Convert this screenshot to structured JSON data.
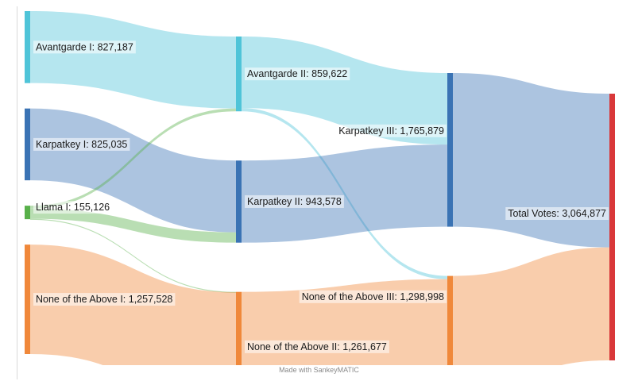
{
  "chart_data": {
    "type": "sankey",
    "title": "",
    "nodes": [
      {
        "id": "avantgarde_1",
        "name": "Avantgarde I",
        "value": 827187,
        "value_label": "827,187",
        "color": "#4fc4d8",
        "stage": 0
      },
      {
        "id": "karpatkey_1",
        "name": "Karpatkey I",
        "value": 825035,
        "value_label": "825,035",
        "color": "#3a73b4",
        "stage": 0
      },
      {
        "id": "llama_1",
        "name": "Llama I",
        "value": 155126,
        "value_label": "155,126",
        "color": "#58b04a",
        "stage": 0
      },
      {
        "id": "nota_1",
        "name": "None of the Above I",
        "value": 1257528,
        "value_label": "1,257,528",
        "color": "#f0883a",
        "stage": 0
      },
      {
        "id": "avantgarde_2",
        "name": "Avantgarde II",
        "value": 859622,
        "value_label": "859,622",
        "color": "#4fc4d8",
        "stage": 1
      },
      {
        "id": "karpatkey_2",
        "name": "Karpatkey II",
        "value": 943578,
        "value_label": "943,578",
        "color": "#3a73b4",
        "stage": 1
      },
      {
        "id": "nota_2",
        "name": "None of the Above II",
        "value": 1261677,
        "value_label": "1,261,677",
        "color": "#f0883a",
        "stage": 1
      },
      {
        "id": "karpatkey_3",
        "name": "Karpatkey III",
        "value": 1765879,
        "value_label": "1,765,879",
        "color": "#3a73b4",
        "stage": 2
      },
      {
        "id": "nota_3",
        "name": "None of the Above III",
        "value": 1298998,
        "value_label": "1,298,998",
        "color": "#f0883a",
        "stage": 2
      },
      {
        "id": "total",
        "name": "Total Votes",
        "value": 3064877,
        "value_label": "3,064,877",
        "color": "#d9383a",
        "stage": 3
      }
    ],
    "links": [
      {
        "source": "avantgarde_1",
        "target": "avantgarde_2",
        "value": 827187
      },
      {
        "source": "karpatkey_1",
        "target": "karpatkey_2",
        "value": 825035
      },
      {
        "source": "llama_1",
        "target": "avantgarde_2",
        "value": 32435
      },
      {
        "source": "llama_1",
        "target": "karpatkey_2",
        "value": 118543
      },
      {
        "source": "llama_1",
        "target": "nota_2",
        "value": 4148
      },
      {
        "source": "nota_1",
        "target": "nota_2",
        "value": 1257528
      },
      {
        "source": "avantgarde_2",
        "target": "karpatkey_3",
        "value": 822301
      },
      {
        "source": "avantgarde_2",
        "target": "nota_3",
        "value": 37321
      },
      {
        "source": "karpatkey_2",
        "target": "karpatkey_3",
        "value": 943578
      },
      {
        "source": "nota_2",
        "target": "nota_3",
        "value": 1261677
      },
      {
        "source": "karpatkey_3",
        "target": "total",
        "value": 1765879
      },
      {
        "source": "nota_3",
        "target": "total",
        "value": 1298998
      }
    ],
    "credit": "Made with SankeyMATIC"
  }
}
